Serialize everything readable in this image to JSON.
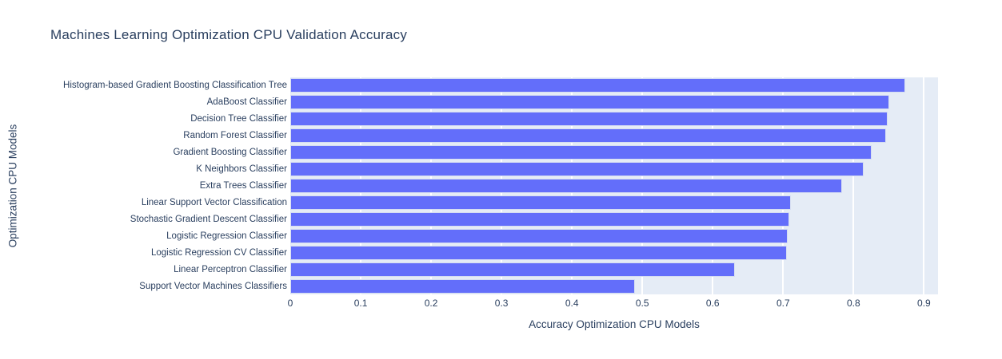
{
  "chart_data": {
    "type": "bar",
    "orientation": "horizontal",
    "title": "Machines Learning Optimization CPU Validation Accuracy",
    "xlabel": "Accuracy Optimization CPU Models",
    "ylabel": "Optimization CPU Models",
    "categories": [
      "Histogram-based Gradient Boosting Classification Tree",
      "AdaBoost Classifier",
      "Decision Tree Classifier",
      "Random Forest Classifier",
      "Gradient Boosting Classifier",
      "K Neighbors Classifier",
      "Extra Trees Classifier",
      "Linear Support Vector Classification",
      "Stochastic Gradient Descent Classifier",
      "Logistic Regression Classifier",
      "Logistic Regression CV Classifier",
      "Linear Perceptron Classifier",
      "Support Vector Machines Classifiers"
    ],
    "values": [
      0.873,
      0.851,
      0.848,
      0.846,
      0.826,
      0.814,
      0.784,
      0.711,
      0.709,
      0.706,
      0.705,
      0.631,
      0.49
    ],
    "xlim": [
      0,
      0.92
    ],
    "xticks": [
      0,
      0.1,
      0.2,
      0.3,
      0.4,
      0.5,
      0.6,
      0.7,
      0.8,
      0.9
    ],
    "xtick_labels": [
      "0",
      "0.1",
      "0.2",
      "0.3",
      "0.4",
      "0.5",
      "0.6",
      "0.7",
      "0.8",
      "0.9"
    ],
    "grid": true,
    "legend": false,
    "colors": {
      "bar": "#636efa",
      "bar_border": "#d5ddf2",
      "plot_background": "#e5ecf6",
      "gridline": "#ffffff",
      "text": "#2a3f5f"
    }
  }
}
